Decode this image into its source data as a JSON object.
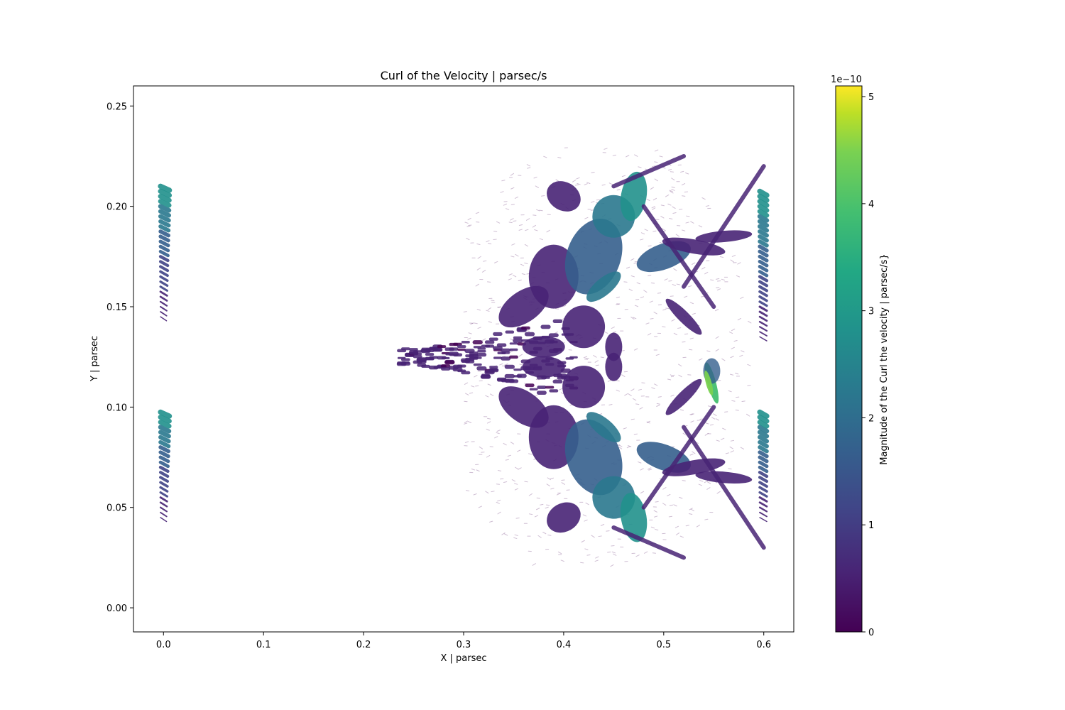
{
  "chart_data": {
    "type": "scatter",
    "subtype": "quiver",
    "title": "Curl of the Velocity | parsec/s",
    "xlabel": "X | parsec",
    "ylabel": "Y | parsec",
    "xlim": [
      -0.03,
      0.63
    ],
    "ylim": [
      -0.012,
      0.26
    ],
    "xticks": [
      0.0,
      0.1,
      0.2,
      0.3,
      0.4,
      0.5,
      0.6
    ],
    "xtick_labels": [
      "0.0",
      "0.1",
      "0.2",
      "0.3",
      "0.4",
      "0.5",
      "0.6"
    ],
    "yticks": [
      0.0,
      0.05,
      0.1,
      0.15,
      0.2,
      0.25
    ],
    "ytick_labels": [
      "0.00",
      "0.05",
      "0.10",
      "0.15",
      "0.20",
      "0.25"
    ],
    "grid": false,
    "colormap": "viridis",
    "colorbar": {
      "label": "Magnitude of the Curl the velocity | parsec/s}",
      "scale_label": "1e−10",
      "range": [
        0,
        5.1
      ],
      "ticks": [
        0,
        1,
        2,
        3,
        4,
        5
      ],
      "tick_labels": [
        "0",
        "1",
        "2",
        "3",
        "4",
        "5"
      ]
    },
    "regions": [
      {
        "x": 0.0,
        "y_min": 0.145,
        "y_max": 0.212,
        "value_max": 2.8
      },
      {
        "x": 0.0,
        "y_min": 0.045,
        "y_max": 0.1,
        "value_max": 2.8
      },
      {
        "x": 0.6,
        "y_min": 0.135,
        "y_max": 0.21,
        "value_max": 2.8
      },
      {
        "x": 0.6,
        "y_min": 0.045,
        "y_max": 0.1,
        "value_max": 2.8
      },
      {
        "x_min": 0.235,
        "x_max": 0.6,
        "y_min": 0.02,
        "y_max": 0.228,
        "value_max": 4.2
      }
    ]
  }
}
